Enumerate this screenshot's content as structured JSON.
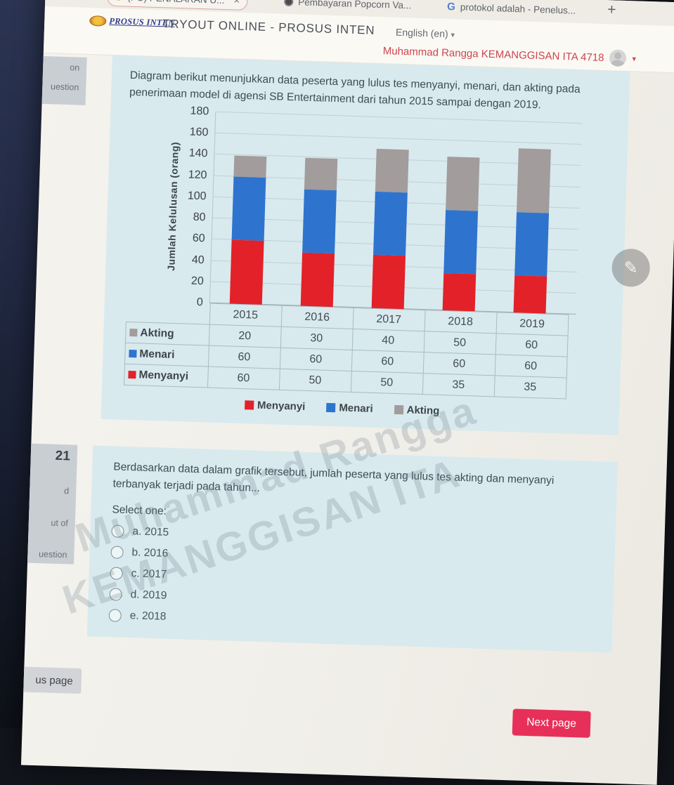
{
  "browser": {
    "tabs": [
      {
        "title": "(PU) PENALARAN U...",
        "close_label": "×"
      },
      {
        "title": "Pembayaran Popcorn Va..."
      },
      {
        "title": "protokol adalah - Penelus...",
        "favicon_letter": "G"
      }
    ],
    "new_tab_label": "+"
  },
  "header": {
    "logo_text": "PROSUS INTEN",
    "site_title": "TRYOUT ONLINE - PROSUS INTEN",
    "language_label": "English (en)",
    "language_caret": "▾",
    "user_name": "Muhammad Rangga KEMANGGISAN ITA 4718",
    "user_caret": "▾"
  },
  "question_block": {
    "info_fragments": [
      "on",
      "uestion"
    ],
    "prompt": "Diagram berikut menunjukkan data peserta yang lulus tes menyanyi, menari, dan akting pada penerimaan model di agensi SB Entertainment dari tahun 2015 sampai dengan 2019."
  },
  "chart_data": {
    "type": "bar",
    "stacked": true,
    "categories": [
      "2015",
      "2016",
      "2017",
      "2018",
      "2019"
    ],
    "series": [
      {
        "name": "Menyanyi",
        "color": "#e32129",
        "values": [
          60,
          50,
          50,
          35,
          35
        ]
      },
      {
        "name": "Menari",
        "color": "#2e74cf",
        "values": [
          60,
          60,
          60,
          60,
          60
        ]
      },
      {
        "name": "Akting",
        "color": "#a29c9c",
        "values": [
          20,
          30,
          40,
          50,
          60
        ]
      }
    ],
    "ylabel": "Jumlah Kelulusan (orang)",
    "ylim": [
      0,
      180
    ],
    "ytick_step": 20,
    "grid": true,
    "data_table_row_order": [
      "Akting",
      "Menari",
      "Menyanyi"
    ],
    "legend_order": [
      "Menyanyi",
      "Menari",
      "Akting"
    ],
    "legend_position": "bottom"
  },
  "question21": {
    "number": "21",
    "info_fragments": [
      "d",
      "ut of",
      "uestion"
    ],
    "prompt": "Berdasarkan data dalam grafik tersebut, jumlah peserta yang lulus tes akting dan menyanyi terbanyak terjadi pada tahun...",
    "select_label": "Select one:",
    "options": [
      {
        "key": "a.",
        "label": "2015"
      },
      {
        "key": "b.",
        "label": "2016"
      },
      {
        "key": "c.",
        "label": "2017"
      },
      {
        "key": "d.",
        "label": "2019"
      },
      {
        "key": "e.",
        "label": "2018"
      }
    ]
  },
  "watermark": {
    "line1": "Muhammad Rangga",
    "line2": "KEMANGGISAN ITA"
  },
  "navigation": {
    "previous_label_visible": "us page",
    "next_label": "Next page"
  },
  "colors": {
    "next_button": "#e73059",
    "card_background": "#d8eaee",
    "username_text": "#cd4552"
  }
}
